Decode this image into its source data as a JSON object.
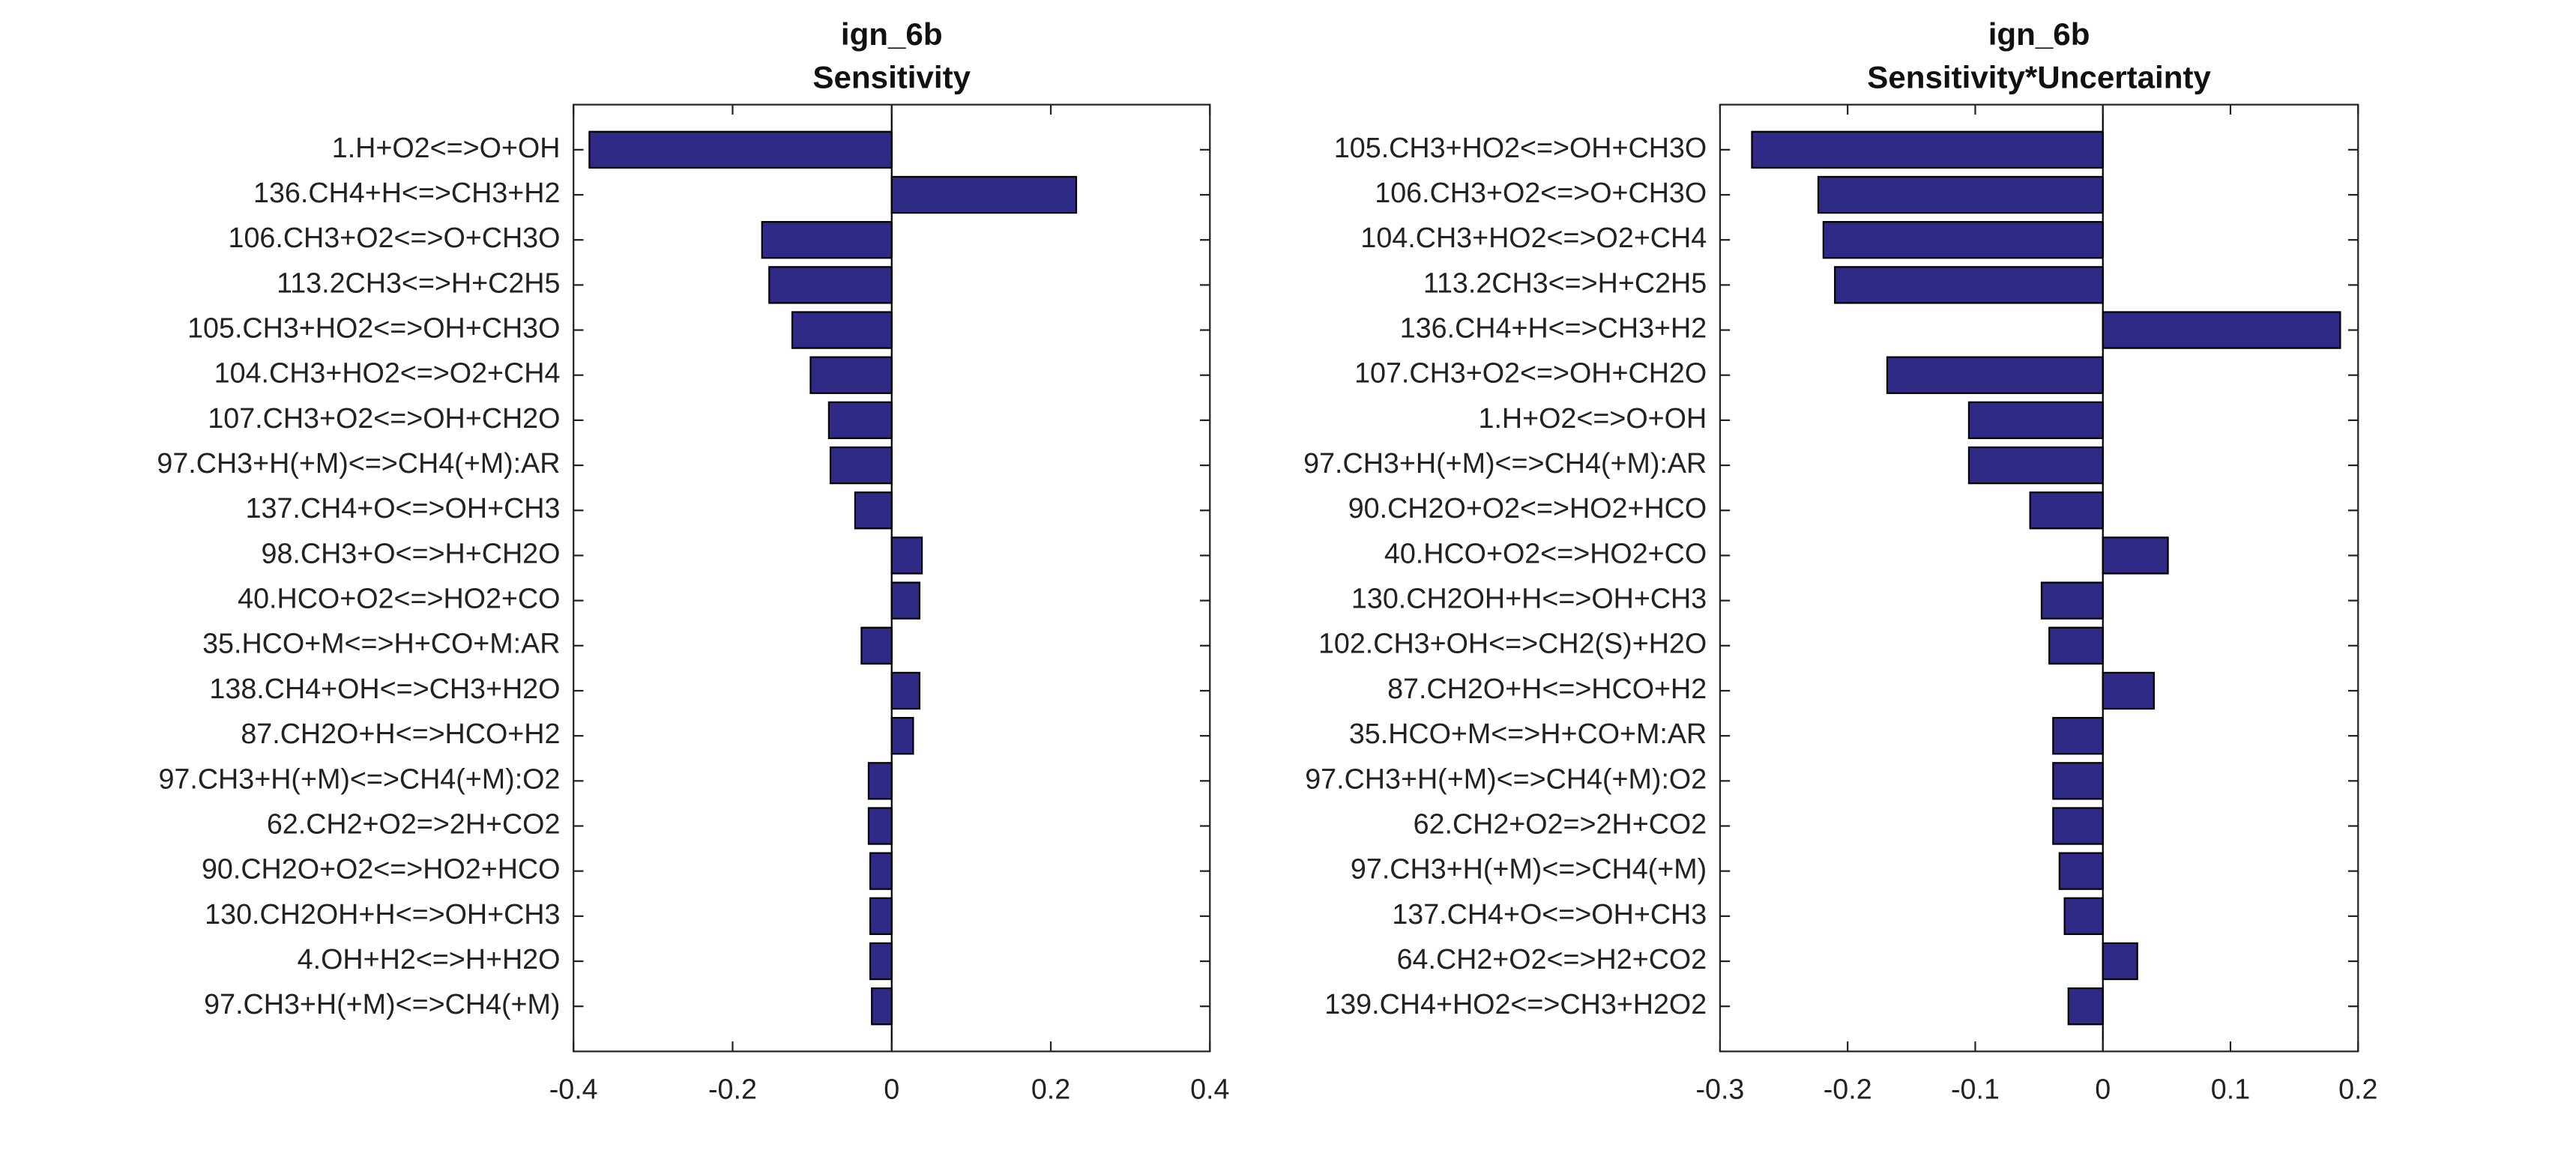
{
  "chart_data": [
    {
      "type": "barh",
      "title": "ign_6b",
      "subtitle": "Sensitivity",
      "color": "#2f2a86",
      "categories": [
        "1.H+O2<=>O+OH",
        "136.CH4+H<=>CH3+H2",
        "106.CH3+O2<=>O+CH3O",
        "113.2CH3<=>H+C2H5",
        "105.CH3+HO2<=>OH+CH3O",
        "104.CH3+HO2<=>O2+CH4",
        "107.CH3+O2<=>OH+CH2O",
        "97.CH3+H(+M)<=>CH4(+M):AR",
        "137.CH4+O<=>OH+CH3",
        "98.CH3+O<=>H+CH2O",
        "40.HCO+O2<=>HO2+CO",
        "35.HCO+M<=>H+CO+M:AR",
        "138.CH4+OH<=>CH3+H2O",
        "87.CH2O+H<=>HCO+H2",
        "97.CH3+H(+M)<=>CH4(+M):O2",
        "62.CH2+O2=>2H+CO2",
        "90.CH2O+O2<=>HO2+HCO",
        "130.CH2OH+H<=>OH+CH3",
        "4.OH+H2<=>H+H2O",
        "97.CH3+H(+M)<=>CH4(+M)"
      ],
      "values": [
        -0.38,
        0.232,
        -0.163,
        -0.154,
        -0.125,
        -0.102,
        -0.079,
        -0.077,
        -0.046,
        0.038,
        0.035,
        -0.038,
        0.035,
        0.027,
        -0.029,
        -0.029,
        -0.027,
        -0.027,
        -0.027,
        -0.025
      ],
      "xlim": [
        -0.4,
        0.4
      ],
      "xticks": [
        -0.4,
        -0.2,
        0,
        0.2,
        0.4
      ]
    },
    {
      "type": "barh",
      "title": "ign_6b",
      "subtitle": "Sensitivity*Uncertainty",
      "color": "#2f2a86",
      "categories": [
        "105.CH3+HO2<=>OH+CH3O",
        "106.CH3+O2<=>O+CH3O",
        "104.CH3+HO2<=>O2+CH4",
        "113.2CH3<=>H+C2H5",
        "136.CH4+H<=>CH3+H2",
        "107.CH3+O2<=>OH+CH2O",
        "1.H+O2<=>O+OH",
        "97.CH3+H(+M)<=>CH4(+M):AR",
        "90.CH2O+O2<=>HO2+HCO",
        "40.HCO+O2<=>HO2+CO",
        "130.CH2OH+H<=>OH+CH3",
        "102.CH3+OH<=>CH2(S)+H2O",
        "87.CH2O+H<=>HCO+H2",
        "35.HCO+M<=>H+CO+M:AR",
        "97.CH3+H(+M)<=>CH4(+M):O2",
        "62.CH2+O2=>2H+CO2",
        "97.CH3+H(+M)<=>CH4(+M)",
        "137.CH4+O<=>OH+CH3",
        "64.CH2+O2<=>H2+CO2",
        "139.CH4+HO2<=>CH3+H2O2"
      ],
      "values": [
        -0.275,
        -0.223,
        -0.219,
        -0.21,
        0.186,
        -0.169,
        -0.105,
        -0.105,
        -0.057,
        0.051,
        -0.048,
        -0.042,
        0.04,
        -0.039,
        -0.039,
        -0.039,
        -0.034,
        -0.03,
        0.027,
        -0.027
      ],
      "xlim": [
        -0.3,
        0.2
      ],
      "xticks": [
        -0.3,
        -0.2,
        -0.1,
        0,
        0.1,
        0.2
      ]
    }
  ]
}
